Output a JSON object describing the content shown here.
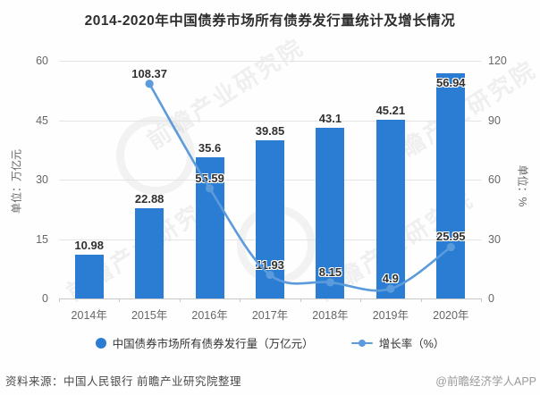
{
  "title": "2014-2020年中国债券市场所有债券发行量统计及增长情况",
  "chart_data": {
    "type": "bar",
    "categories": [
      "2014年",
      "2015年",
      "2016年",
      "2017年",
      "2018年",
      "2019年",
      "2020年"
    ],
    "series": [
      {
        "name": "中国债券市场所有债券发行量（万亿元）",
        "type": "bar",
        "axis": "left",
        "color": "#2a7dd2",
        "values": [
          10.98,
          22.88,
          35.6,
          39.85,
          43.1,
          45.21,
          56.94
        ]
      },
      {
        "name": "增长率（%）",
        "type": "line",
        "axis": "right",
        "color": "#5b9bdc",
        "values": [
          null,
          108.37,
          55.59,
          11.93,
          8.15,
          4.9,
          25.95
        ]
      }
    ],
    "left_axis": {
      "unit": "单位：万亿元",
      "ticks": [
        0,
        15,
        30,
        45,
        60
      ],
      "min": 0,
      "max": 60
    },
    "right_axis": {
      "unit": "单位：%",
      "ticks": [
        0,
        30,
        60,
        90,
        120
      ],
      "min": 0,
      "max": 120
    },
    "grid": true,
    "legend_position": "bottom"
  },
  "legend": [
    {
      "label": "中国债券市场所有债券发行量（万亿元）",
      "marker": "circle",
      "color": "#2a7dd2"
    },
    {
      "label": "增长率（%）",
      "marker": "line-dot",
      "color": "#5b9bdc"
    }
  ],
  "footer": {
    "source": "资料来源：中国人民银行 前瞻产业研究院整理",
    "credit": "@前瞻经济学人APP"
  },
  "watermark": {
    "text": "前瞻产业研究院"
  },
  "colors": {
    "bar": "#2a7dd2",
    "line": "#5b9bdc",
    "value_label": "#303030",
    "axis_text": "#666666",
    "grid": "#e4e4e4",
    "baseline": "#c8c8c8",
    "title": "#2e2e2e"
  }
}
